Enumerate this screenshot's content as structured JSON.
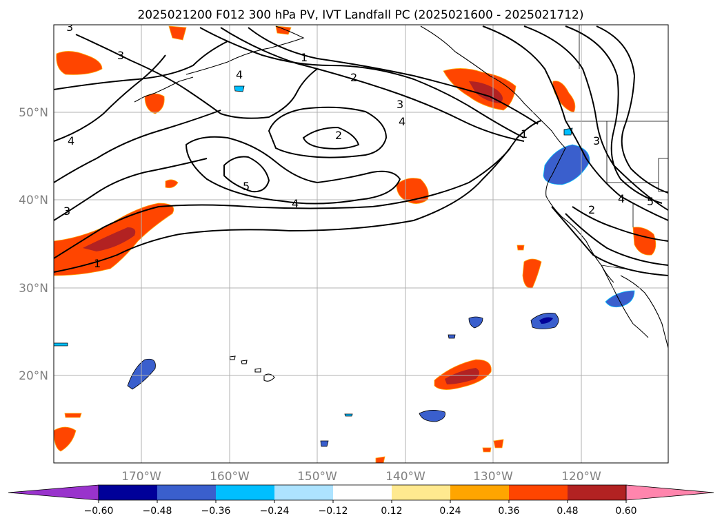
{
  "title": "2025021200 F012 300 hPa PV, IVT Landfall PC (2025021600 - 2025021712)",
  "map": {
    "lat_labels": [
      "50°N",
      "40°N",
      "30°N",
      "20°N"
    ],
    "lon_labels": [
      "170°W",
      "160°W",
      "150°W",
      "140°W",
      "130°W",
      "120°W"
    ],
    "gridlines": true,
    "pv_contour_labels": [
      "3",
      "3",
      "1",
      "2",
      "4",
      "3",
      "4",
      "2",
      "4",
      "5",
      "4",
      "3",
      "1",
      "1",
      "3",
      "4",
      "2",
      "5"
    ]
  },
  "colorbar": {
    "ticks": [
      "−0.60",
      "−0.48",
      "−0.36",
      "−0.24",
      "−0.12",
      "0.12",
      "0.24",
      "0.36",
      "0.48",
      "0.60"
    ],
    "colors": [
      "#9933cc",
      "#000099",
      "#3a5fcd",
      "#00bfff",
      "#ade3ff",
      "#ffffff",
      "#ffe98f",
      "#ffa500",
      "#ff4500",
      "#b22222",
      "#ff85ad"
    ]
  },
  "colors": {
    "neg_strong": "#000099",
    "neg_mid": "#3a5fcd",
    "neg_light": "#00bfff",
    "pos_light": "#ffa500",
    "pos_mid": "#ff4500",
    "pos_strong": "#b22222"
  }
}
